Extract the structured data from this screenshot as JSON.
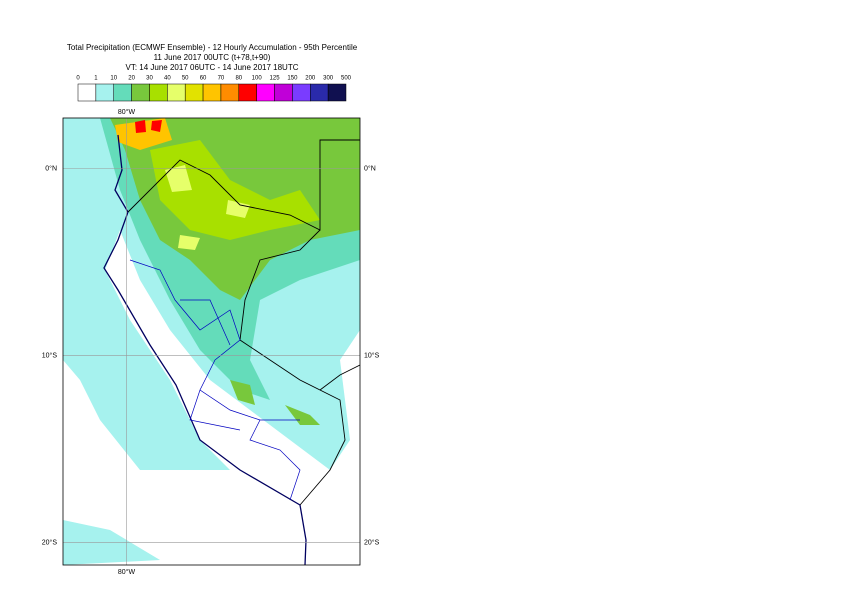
{
  "map": {
    "title_lines": [
      "Total Precipitation (ECMWF Ensemble) - 12 Hourly Accumulation - 95th Percentile",
      "11 June 2017 00UTC (t+78,t+90)",
      "VT: 14 June 2017 06UTC - 14 June 2017 18UTC"
    ],
    "legend": {
      "labels": [
        "0",
        "1",
        "10",
        "20",
        "30",
        "40",
        "50",
        "60",
        "70",
        "80",
        "100",
        "125",
        "150",
        "200",
        "300",
        "500"
      ],
      "colors": [
        "#ffffff",
        "#a6f2ee",
        "#64dcba",
        "#78c83c",
        "#a8e000",
        "#e6ff6a",
        "#e2e200",
        "#ffc400",
        "#ff8c00",
        "#ff0000",
        "#ff00ff",
        "#c000d8",
        "#7a3cff",
        "#2a2aaa",
        "#101050"
      ]
    },
    "latlim": [
      -21.2,
      2.7
    ],
    "lonlim": [
      -83.4,
      -67.5
    ],
    "lat_lines": [
      {
        "value": 0,
        "label": "0°N"
      },
      {
        "value": -10,
        "label": "10°S"
      },
      {
        "value": -20,
        "label": "20°S"
      }
    ],
    "lon_lines": [
      {
        "value": -80,
        "label": "80°W"
      }
    ]
  }
}
